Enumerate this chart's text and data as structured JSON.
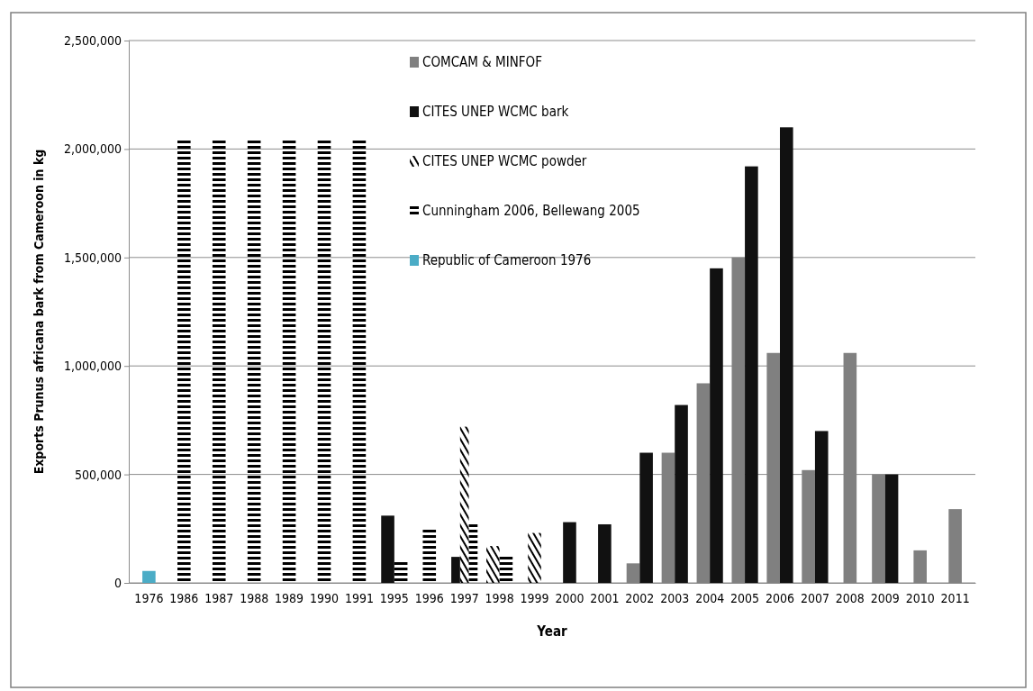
{
  "chart_data": {
    "type": "bar",
    "xlabel": "Year",
    "ylabel": "Exports Prunus africana bark from Cameroon in kg",
    "categories": [
      "1976",
      "1986",
      "1987",
      "1988",
      "1989",
      "1990",
      "1991",
      "1995",
      "1996",
      "1997",
      "1998",
      "1999",
      "2000",
      "2001",
      "2002",
      "2003",
      "2004",
      "2005",
      "2006",
      "2007",
      "2008",
      "2009",
      "2010",
      "2011"
    ],
    "series": [
      {
        "name": "COMCAM & MINFOF",
        "color": "#808080",
        "values": [
          null,
          null,
          null,
          null,
          null,
          null,
          null,
          null,
          null,
          null,
          null,
          null,
          null,
          null,
          90000,
          600000,
          920000,
          1500000,
          1060000,
          520000,
          1060000,
          500000,
          150000,
          340000
        ]
      },
      {
        "name": "CITES  UNEP WCMC bark",
        "color": "#111111",
        "values": [
          null,
          null,
          null,
          null,
          null,
          null,
          null,
          310000,
          null,
          120000,
          null,
          null,
          280000,
          270000,
          600000,
          820000,
          1450000,
          1920000,
          2100000,
          700000,
          null,
          500000,
          null,
          null
        ]
      },
      {
        "name": "CITES  UNEP WCMC powder",
        "color": "#000000",
        "values": [
          null,
          null,
          null,
          null,
          null,
          null,
          null,
          null,
          null,
          720000,
          170000,
          230000,
          null,
          null,
          null,
          null,
          null,
          null,
          null,
          null,
          null,
          null,
          null,
          null
        ]
      },
      {
        "name": "Cunningham 2006, Bellewang 2005",
        "color": "#000000",
        "values": [
          null,
          2040000,
          2040000,
          2040000,
          2040000,
          2040000,
          2040000,
          100000,
          250000,
          270000,
          130000,
          null,
          null,
          null,
          null,
          null,
          null,
          null,
          null,
          null,
          null,
          null,
          null,
          null
        ]
      },
      {
        "name": "Republic of Cameroon 1976",
        "color": "#4bacc6",
        "values": [
          55000,
          null,
          null,
          null,
          null,
          null,
          null,
          null,
          null,
          null,
          null,
          null,
          null,
          null,
          null,
          null,
          null,
          null,
          null,
          null,
          null,
          null,
          null,
          null
        ]
      }
    ],
    "ylim": [
      0,
      2500000
    ],
    "yticks": [
      {
        "value": 0,
        "label": "0"
      },
      {
        "value": 500000,
        "label": "500,000"
      },
      {
        "value": 1000000,
        "label": "1,000,000"
      },
      {
        "value": 1500000,
        "label": "1,500,000"
      },
      {
        "value": 2000000,
        "label": "2,000,000"
      },
      {
        "value": 2500000,
        "label": "2,500,000"
      }
    ],
    "grid": "y",
    "legend": "top"
  }
}
